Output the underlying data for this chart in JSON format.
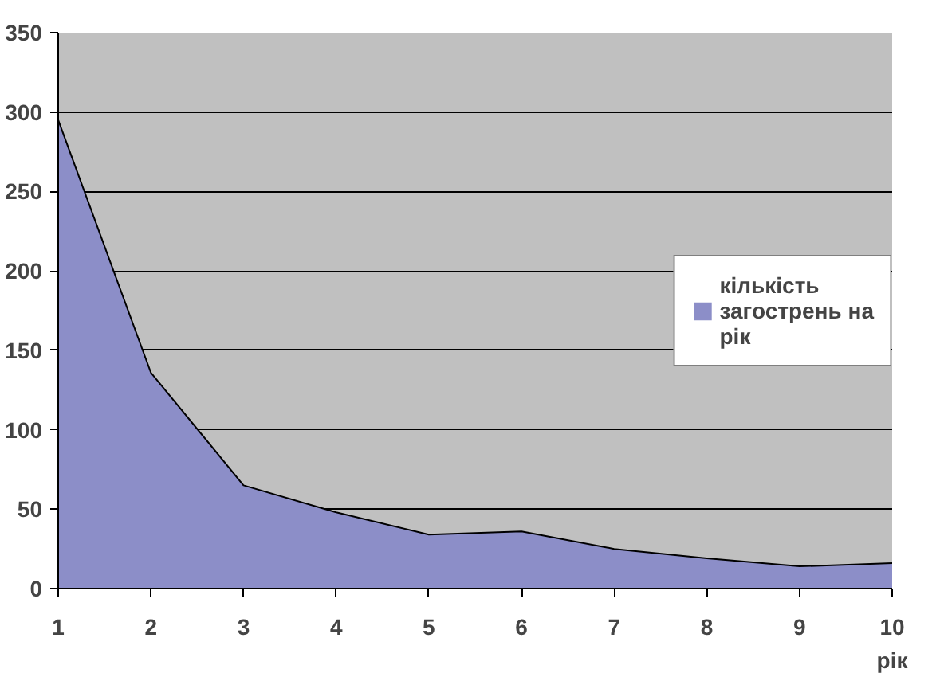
{
  "chart_data": {
    "type": "area",
    "xlabel": "рік",
    "x": [
      1,
      2,
      3,
      4,
      5,
      6,
      7,
      8,
      9,
      10
    ],
    "series": [
      {
        "name": "кількість загострень на рік",
        "color": "#8c8ec8",
        "values": [
          295,
          136,
          65,
          48,
          34,
          36,
          25,
          19,
          14,
          16
        ]
      }
    ],
    "xlim": [
      1,
      10
    ],
    "xticks": [
      1,
      2,
      3,
      4,
      5,
      6,
      7,
      8,
      9,
      10
    ],
    "ylim": [
      0,
      350
    ],
    "yticks": [
      0,
      50,
      100,
      150,
      200,
      250,
      300,
      350
    ],
    "grid": "y",
    "legend": "right"
  }
}
